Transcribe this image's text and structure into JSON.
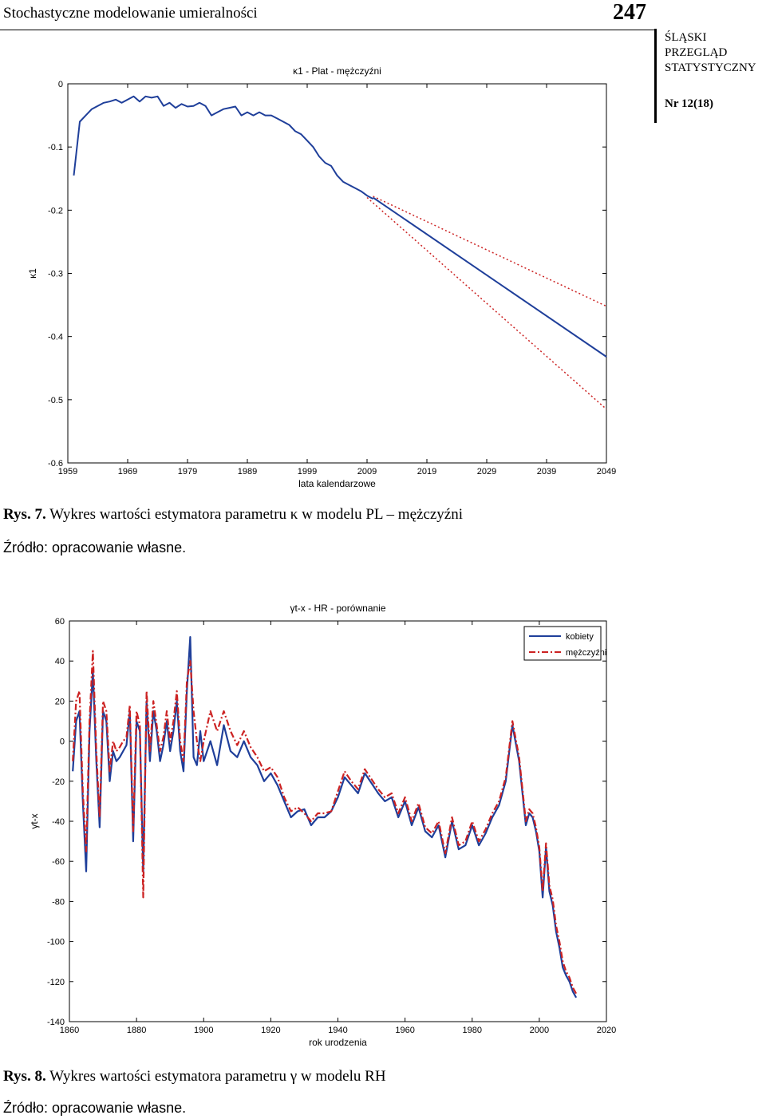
{
  "header": {
    "title": "Stochastyczne modelowanie umieralności",
    "page_number": "247",
    "journal_line1": "ŚLĄSKI",
    "journal_line2": "PRZEGLĄD",
    "journal_line3": "STATYSTYCZNY",
    "issue": "Nr 12(18)"
  },
  "figure7": {
    "caption_label": "Rys. 7.",
    "caption_text": " Wykres wartości estymatora parametru κ w modelu PL – mężczyźni",
    "source": "Źródło: opracowanie własne."
  },
  "figure8": {
    "caption_label": "Rys. 8.",
    "caption_text": " Wykres wartości estymatora parametru γ w modelu RH",
    "source": "Źródło: opracowanie własne."
  },
  "chart_data": [
    {
      "type": "line",
      "title": "κ1 - Plat - mężczyźni",
      "xlabel": "lata kalendarzowe",
      "ylabel": "κ1",
      "xlim": [
        1959,
        2049
      ],
      "ylim": [
        -0.6,
        0
      ],
      "xticks": [
        "1959",
        "1969",
        "1979",
        "1989",
        "1999",
        "2009",
        "2019",
        "2029",
        "2039",
        "2049"
      ],
      "yticks": [
        "0",
        "-0.1",
        "-0.2",
        "-0.3",
        "-0.4",
        "-0.5",
        "-0.6"
      ],
      "colors": {
        "series": "#1f3f9a",
        "band": "#cc2222"
      },
      "series": [
        {
          "style": "solid",
          "x": [
            1960,
            1961,
            1962,
            1963,
            1964,
            1965,
            1966,
            1967,
            1968,
            1969,
            1970,
            1971,
            1972,
            1973,
            1974,
            1975,
            1976,
            1977,
            1978,
            1979,
            1980,
            1981,
            1982,
            1983,
            1984,
            1985,
            1986,
            1987,
            1988,
            1989,
            1990,
            1991,
            1992,
            1993,
            1994,
            1995,
            1996,
            1997,
            1998,
            1999,
            2000,
            2001,
            2002,
            2003,
            2004,
            2005,
            2006,
            2007,
            2008,
            2009,
            2010
          ],
          "y": [
            -0.145,
            -0.06,
            -0.05,
            -0.04,
            -0.035,
            -0.03,
            -0.028,
            -0.025,
            -0.03,
            -0.025,
            -0.02,
            -0.028,
            -0.02,
            -0.022,
            -0.02,
            -0.035,
            -0.03,
            -0.038,
            -0.032,
            -0.036,
            -0.035,
            -0.03,
            -0.035,
            -0.05,
            -0.045,
            -0.04,
            -0.038,
            -0.036,
            -0.05,
            -0.045,
            -0.05,
            -0.045,
            -0.05,
            -0.05,
            -0.055,
            -0.06,
            -0.065,
            -0.075,
            -0.08,
            -0.09,
            -0.1,
            -0.115,
            -0.125,
            -0.13,
            -0.145,
            -0.155,
            -0.16,
            -0.165,
            -0.17,
            -0.177,
            -0.182
          ]
        },
        {
          "style": "solid",
          "x": [
            2010,
            2049
          ],
          "y": [
            -0.18,
            -0.432
          ]
        },
        {
          "style": "dotted",
          "x": [
            2010,
            2049
          ],
          "y": [
            -0.178,
            -0.352
          ]
        },
        {
          "style": "dotted",
          "x": [
            2009,
            2049
          ],
          "y": [
            -0.18,
            -0.515
          ]
        }
      ]
    },
    {
      "type": "line",
      "title": "γt-x - HR - porównanie",
      "xlabel": "rok urodzenia",
      "ylabel": "γt-x",
      "xlim": [
        1860,
        2020
      ],
      "ylim": [
        -140,
        60
      ],
      "xticks": [
        "1860",
        "1880",
        "1900",
        "1920",
        "1940",
        "1960",
        "1980",
        "2000",
        "2020"
      ],
      "yticks": [
        "60",
        "40",
        "20",
        "0",
        "-20",
        "-40",
        "-60",
        "-80",
        "-100",
        "-120",
        "-140"
      ],
      "legend_position": "top-right",
      "series": [
        {
          "name": "kobiety",
          "color": "#1f3f9a",
          "style": "solid",
          "x": [
            1861,
            1862,
            1863,
            1864,
            1865,
            1866,
            1867,
            1868,
            1869,
            1870,
            1871,
            1872,
            1873,
            1874,
            1875,
            1876,
            1877,
            1878,
            1879,
            1880,
            1881,
            1882,
            1883,
            1884,
            1885,
            1886,
            1887,
            1888,
            1889,
            1890,
            1891,
            1892,
            1893,
            1894,
            1895,
            1896,
            1897,
            1898,
            1899,
            1900,
            1902,
            1904,
            1906,
            1908,
            1910,
            1912,
            1914,
            1916,
            1918,
            1920,
            1922,
            1924,
            1926,
            1928,
            1930,
            1932,
            1934,
            1936,
            1938,
            1940,
            1942,
            1944,
            1946,
            1948,
            1950,
            1952,
            1954,
            1956,
            1958,
            1960,
            1962,
            1964,
            1966,
            1968,
            1970,
            1972,
            1974,
            1976,
            1978,
            1980,
            1982,
            1984,
            1986,
            1988,
            1990,
            1992,
            1994,
            1996,
            1997,
            1998,
            1999,
            2000,
            2001,
            2002,
            2003,
            2004,
            2005,
            2006,
            2007,
            2008,
            2009,
            2010,
            2011
          ],
          "y": [
            -15,
            10,
            15,
            -30,
            -65,
            5,
            35,
            -10,
            -43,
            15,
            10,
            -20,
            -5,
            -10,
            -8,
            -5,
            -2,
            15,
            -50,
            10,
            5,
            -65,
            20,
            -10,
            15,
            5,
            -10,
            -2,
            10,
            -5,
            5,
            20,
            -5,
            -15,
            25,
            52,
            -8,
            -12,
            5,
            -10,
            0,
            -12,
            8,
            -5,
            -8,
            0,
            -8,
            -12,
            -20,
            -16,
            -22,
            -30,
            -38,
            -35,
            -34,
            -42,
            -38,
            -38,
            -35,
            -28,
            -18,
            -22,
            -26,
            -16,
            -21,
            -26,
            -30,
            -28,
            -38,
            -30,
            -42,
            -33,
            -45,
            -48,
            -42,
            -58,
            -40,
            -54,
            -52,
            -42,
            -52,
            -46,
            -38,
            -32,
            -20,
            8,
            -10,
            -42,
            -36,
            -38,
            -45,
            -55,
            -78,
            -53,
            -75,
            -82,
            -95,
            -103,
            -113,
            -117,
            -120,
            -125,
            -128
          ]
        },
        {
          "name": "mężczyźni",
          "color": "#cc2222",
          "style": "dashdot",
          "x": [
            1861,
            1862,
            1863,
            1864,
            1865,
            1866,
            1867,
            1868,
            1869,
            1870,
            1871,
            1872,
            1873,
            1874,
            1875,
            1876,
            1877,
            1878,
            1879,
            1880,
            1881,
            1882,
            1883,
            1884,
            1885,
            1886,
            1887,
            1888,
            1889,
            1890,
            1891,
            1892,
            1893,
            1894,
            1895,
            1896,
            1897,
            1898,
            1899,
            1900,
            1902,
            1904,
            1906,
            1908,
            1910,
            1912,
            1914,
            1916,
            1918,
            1920,
            1922,
            1924,
            1926,
            1928,
            1930,
            1932,
            1934,
            1936,
            1938,
            1940,
            1942,
            1944,
            1946,
            1948,
            1950,
            1952,
            1954,
            1956,
            1958,
            1960,
            1962,
            1964,
            1966,
            1968,
            1970,
            1972,
            1974,
            1976,
            1978,
            1980,
            1982,
            1984,
            1986,
            1988,
            1990,
            1992,
            1994,
            1996,
            1997,
            1998,
            1999,
            2000,
            2001,
            2002,
            2003,
            2004,
            2005,
            2006,
            2007,
            2008,
            2009,
            2010,
            2011
          ],
          "y": [
            -10,
            20,
            25,
            -25,
            -55,
            10,
            45,
            -5,
            -38,
            20,
            15,
            -15,
            0,
            -5,
            -3,
            0,
            2,
            18,
            -45,
            15,
            8,
            -78,
            25,
            -5,
            20,
            8,
            -5,
            2,
            15,
            0,
            10,
            25,
            0,
            -10,
            30,
            40,
            15,
            0,
            -10,
            0,
            15,
            5,
            15,
            5,
            -2,
            5,
            -3,
            -8,
            -15,
            -13,
            -18,
            -28,
            -35,
            -33,
            -36,
            -40,
            -36,
            -36,
            -35,
            -25,
            -15,
            -20,
            -24,
            -14,
            -19,
            -24,
            -28,
            -26,
            -36,
            -28,
            -40,
            -31,
            -43,
            -46,
            -40,
            -56,
            -38,
            -52,
            -50,
            -40,
            -50,
            -44,
            -36,
            -30,
            -18,
            10,
            -8,
            -40,
            -34,
            -36,
            -43,
            -53,
            -75,
            -51,
            -72,
            -79,
            -92,
            -100,
            -110,
            -115,
            -118,
            -123,
            -126
          ]
        }
      ]
    }
  ]
}
